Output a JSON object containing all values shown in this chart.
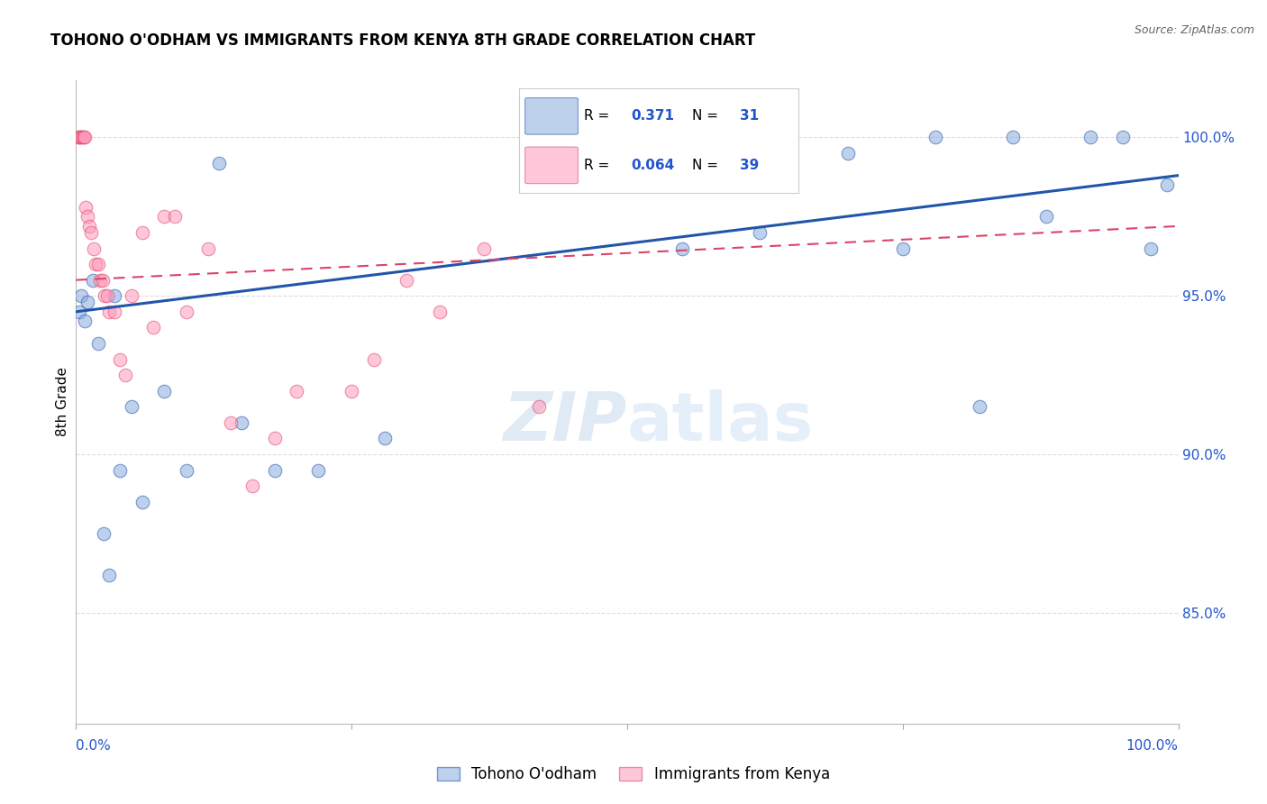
{
  "title": "TOHONO O'ODHAM VS IMMIGRANTS FROM KENYA 8TH GRADE CORRELATION CHART",
  "source": "Source: ZipAtlas.com",
  "ylabel": "8th Grade",
  "ylabel_right_ticks": [
    85.0,
    90.0,
    95.0,
    100.0
  ],
  "ylabel_right_labels": [
    "85.0%",
    "90.0%",
    "95.0%",
    "100.0%"
  ],
  "xlim": [
    0.0,
    100.0
  ],
  "ylim": [
    81.5,
    101.8
  ],
  "watermark_zip": "ZIP",
  "watermark_atlas": "atlas",
  "legend_blue_r_val": "0.371",
  "legend_blue_n_val": "31",
  "legend_pink_r_val": "0.064",
  "legend_pink_n_val": "39",
  "legend_label_blue": "Tohono O'odham",
  "legend_label_pink": "Immigrants from Kenya",
  "blue_color": "#88AADD",
  "pink_color": "#FF99BB",
  "blue_line_color": "#2255AA",
  "pink_line_color": "#DD4466",
  "blue_scatter_x": [
    0.3,
    0.5,
    0.8,
    1.0,
    1.5,
    2.0,
    2.5,
    3.0,
    3.5,
    4.0,
    5.0,
    6.0,
    8.0,
    10.0,
    13.0,
    15.0,
    18.0,
    22.0,
    28.0,
    55.0,
    62.0,
    70.0,
    75.0,
    78.0,
    82.0,
    85.0,
    88.0,
    92.0,
    95.0,
    97.5,
    99.0
  ],
  "blue_scatter_y": [
    94.5,
    95.0,
    94.2,
    94.8,
    95.5,
    93.5,
    87.5,
    86.2,
    95.0,
    89.5,
    91.5,
    88.5,
    92.0,
    89.5,
    99.2,
    91.0,
    89.5,
    89.5,
    90.5,
    96.5,
    97.0,
    99.5,
    96.5,
    100.0,
    91.5,
    100.0,
    97.5,
    100.0,
    100.0,
    96.5,
    98.5
  ],
  "pink_scatter_x": [
    0.2,
    0.3,
    0.4,
    0.5,
    0.6,
    0.7,
    0.8,
    0.9,
    1.0,
    1.2,
    1.4,
    1.6,
    1.8,
    2.0,
    2.2,
    2.4,
    2.6,
    2.8,
    3.0,
    3.5,
    4.0,
    4.5,
    5.0,
    6.0,
    7.0,
    8.0,
    9.0,
    10.0,
    12.0,
    14.0,
    16.0,
    18.0,
    20.0,
    25.0,
    27.0,
    30.0,
    33.0,
    37.0,
    42.0
  ],
  "pink_scatter_y": [
    100.0,
    100.0,
    100.0,
    100.0,
    100.0,
    100.0,
    100.0,
    97.8,
    97.5,
    97.2,
    97.0,
    96.5,
    96.0,
    96.0,
    95.5,
    95.5,
    95.0,
    95.0,
    94.5,
    94.5,
    93.0,
    92.5,
    95.0,
    97.0,
    94.0,
    97.5,
    97.5,
    94.5,
    96.5,
    91.0,
    89.0,
    90.5,
    92.0,
    92.0,
    93.0,
    95.5,
    94.5,
    96.5,
    91.5
  ],
  "blue_trend_x": [
    0.0,
    100.0
  ],
  "blue_trend_y": [
    94.5,
    98.8
  ],
  "pink_trend_x": [
    0.0,
    100.0
  ],
  "pink_trend_y": [
    95.5,
    97.2
  ],
  "grid_color": "#DDDDDD",
  "background_color": "#FFFFFF",
  "label_color": "#2255CC"
}
